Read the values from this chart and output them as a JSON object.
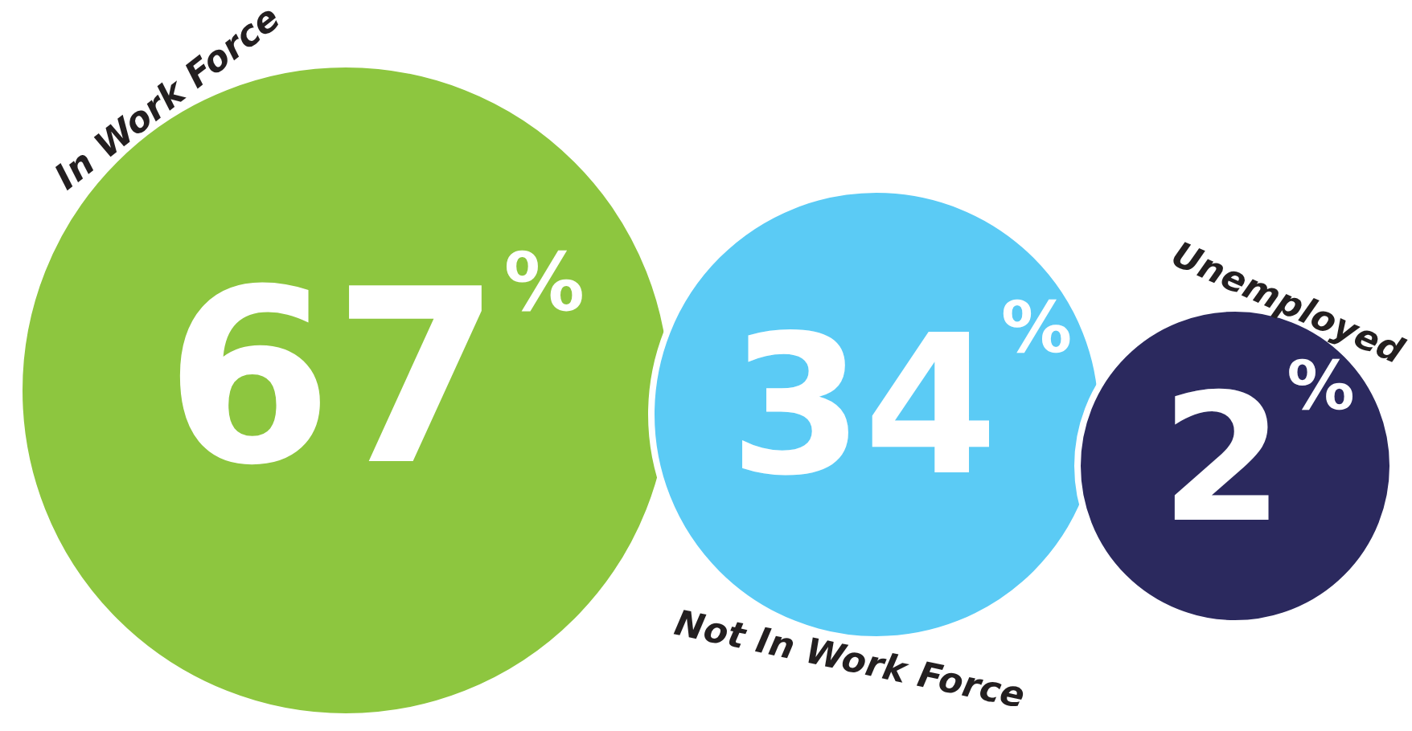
{
  "chart_data": {
    "type": "other",
    "categories": [
      "In Work Force",
      "Not In Work Force",
      "Unemployed"
    ],
    "values": [
      67,
      34,
      2
    ],
    "value_labels": [
      "67%",
      "34%",
      "2%"
    ],
    "colors": [
      "#8dc63f",
      "#5bcbf5",
      "#2b295e"
    ]
  }
}
